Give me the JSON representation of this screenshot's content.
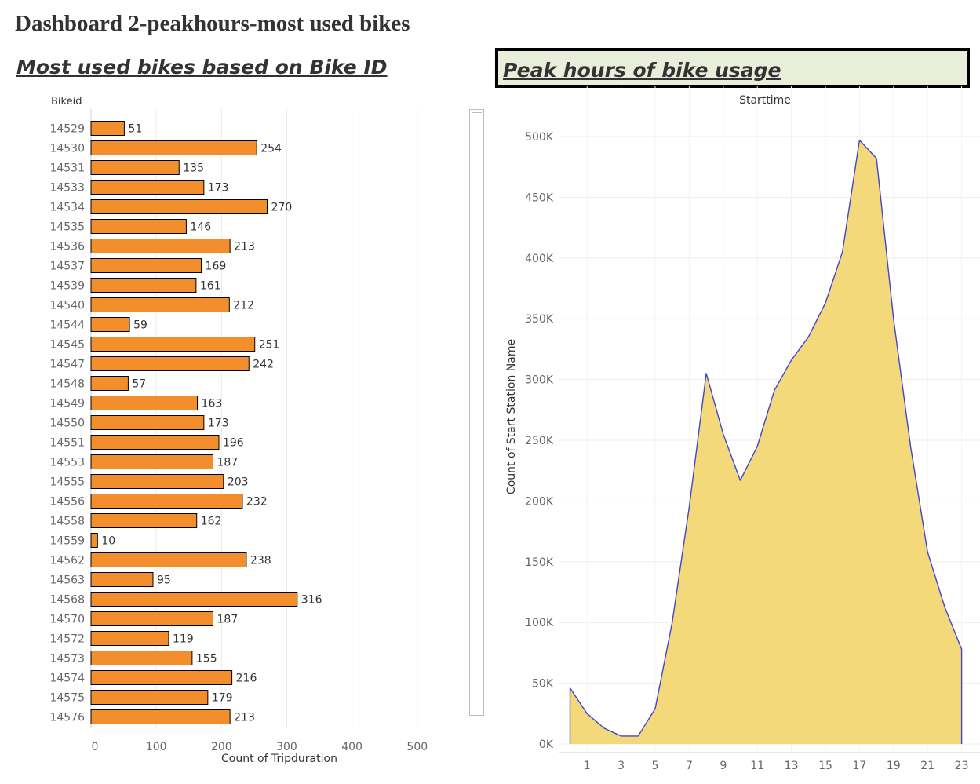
{
  "dashboard": {
    "title": "Dashboard 2-peakhours-most used bikes"
  },
  "left_sheet": {
    "title": "Most used bikes based on Bike ID"
  },
  "right_sheet": {
    "title": "Peak hours of bike usage"
  },
  "chart_data": [
    {
      "type": "bar",
      "orientation": "horizontal",
      "title": "Most used bikes based on Bike ID",
      "row_header": "Bikeid",
      "xlabel": "Count of Tripduration",
      "xlim": [
        0,
        580
      ],
      "xticks": [
        0,
        100,
        200,
        300,
        400,
        500
      ],
      "bar_color": "#f28e2b",
      "bar_border": "#000000",
      "grid": true,
      "data_labels": true,
      "categories": [
        "14529",
        "14530",
        "14531",
        "14533",
        "14534",
        "14535",
        "14536",
        "14537",
        "14539",
        "14540",
        "14544",
        "14545",
        "14547",
        "14548",
        "14549",
        "14550",
        "14551",
        "14553",
        "14555",
        "14556",
        "14558",
        "14559",
        "14562",
        "14563",
        "14568",
        "14570",
        "14572",
        "14573",
        "14574",
        "14575",
        "14576"
      ],
      "values": [
        51,
        254,
        135,
        173,
        270,
        146,
        213,
        169,
        161,
        212,
        59,
        251,
        242,
        57,
        163,
        173,
        196,
        187,
        203,
        232,
        162,
        10,
        238,
        95,
        316,
        187,
        119,
        155,
        216,
        179,
        213
      ]
    },
    {
      "type": "area",
      "title": "Peak hours of bike usage",
      "top_label": "Starttime",
      "ylabel": "Count of Start Station Name",
      "ylim": [
        0,
        500000
      ],
      "yticks": [
        0,
        50000,
        100000,
        150000,
        200000,
        250000,
        300000,
        350000,
        400000,
        450000,
        500000
      ],
      "ytick_labels": [
        "0K",
        "50K",
        "100K",
        "150K",
        "200K",
        "250K",
        "300K",
        "350K",
        "400K",
        "450K",
        "500K"
      ],
      "xticks": [
        1,
        3,
        5,
        7,
        9,
        11,
        13,
        15,
        17,
        19,
        21,
        23
      ],
      "xlim": [
        -1,
        23.5
      ],
      "fill_color": "#f2d56c",
      "line_color": "#4444cc",
      "grid": true,
      "x": [
        0,
        1,
        2,
        3,
        4,
        5,
        6,
        7,
        8,
        9,
        10,
        11,
        12,
        13,
        14,
        15,
        16,
        17,
        18,
        19,
        20,
        21,
        22,
        23
      ],
      "values": [
        46000,
        25000,
        13000,
        6500,
        6500,
        29000,
        100000,
        195000,
        305000,
        255000,
        217000,
        245000,
        291000,
        316000,
        335000,
        363000,
        405000,
        497000,
        482000,
        350000,
        245000,
        158000,
        113000,
        78000
      ]
    }
  ]
}
